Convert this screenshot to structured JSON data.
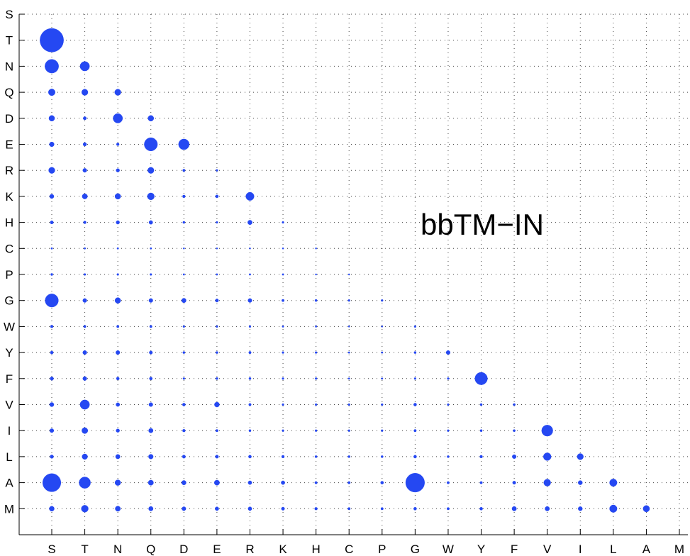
{
  "chart_data": {
    "type": "scatter",
    "title": "",
    "annotation": "bbTM−IN",
    "xlabel": "",
    "ylabel": "",
    "grid": true,
    "x_categories": [
      "S",
      "T",
      "N",
      "Q",
      "D",
      "E",
      "R",
      "K",
      "H",
      "C",
      "P",
      "G",
      "W",
      "Y",
      "F",
      "V",
      "I",
      "L",
      "A",
      "M"
    ],
    "y_categories": [
      "S",
      "T",
      "N",
      "Q",
      "D",
      "E",
      "R",
      "K",
      "H",
      "C",
      "P",
      "G",
      "W",
      "Y",
      "F",
      "V",
      "I",
      "L",
      "A",
      "M"
    ],
    "marker_color": "#2548f2",
    "size_unit": "relative bubble size (0-10)",
    "points": [
      {
        "x": "S",
        "y": "T",
        "size": 9.5
      },
      {
        "x": "S",
        "y": "N",
        "size": 5.5
      },
      {
        "x": "T",
        "y": "N",
        "size": 3.8
      },
      {
        "x": "S",
        "y": "Q",
        "size": 2.7
      },
      {
        "x": "T",
        "y": "Q",
        "size": 2.5
      },
      {
        "x": "N",
        "y": "Q",
        "size": 2.5
      },
      {
        "x": "S",
        "y": "D",
        "size": 2.3
      },
      {
        "x": "T",
        "y": "D",
        "size": 1.3
      },
      {
        "x": "N",
        "y": "D",
        "size": 3.8
      },
      {
        "x": "Q",
        "y": "D",
        "size": 2.3
      },
      {
        "x": "S",
        "y": "E",
        "size": 1.9
      },
      {
        "x": "T",
        "y": "E",
        "size": 1.4
      },
      {
        "x": "N",
        "y": "E",
        "size": 1.1
      },
      {
        "x": "Q",
        "y": "E",
        "size": 5.3
      },
      {
        "x": "D",
        "y": "E",
        "size": 4.3
      },
      {
        "x": "S",
        "y": "R",
        "size": 2.5
      },
      {
        "x": "T",
        "y": "R",
        "size": 1.6
      },
      {
        "x": "N",
        "y": "R",
        "size": 1.4
      },
      {
        "x": "Q",
        "y": "R",
        "size": 2.5
      },
      {
        "x": "D",
        "y": "R",
        "size": 1.0
      },
      {
        "x": "E",
        "y": "R",
        "size": 0.8
      },
      {
        "x": "S",
        "y": "K",
        "size": 1.7
      },
      {
        "x": "T",
        "y": "K",
        "size": 2.1
      },
      {
        "x": "N",
        "y": "K",
        "size": 2.3
      },
      {
        "x": "Q",
        "y": "K",
        "size": 2.8
      },
      {
        "x": "D",
        "y": "K",
        "size": 1.1
      },
      {
        "x": "E",
        "y": "K",
        "size": 1.2
      },
      {
        "x": "R",
        "y": "K",
        "size": 3.3
      },
      {
        "x": "S",
        "y": "H",
        "size": 1.3
      },
      {
        "x": "T",
        "y": "H",
        "size": 1.1
      },
      {
        "x": "N",
        "y": "H",
        "size": 1.4
      },
      {
        "x": "Q",
        "y": "H",
        "size": 1.5
      },
      {
        "x": "D",
        "y": "H",
        "size": 0.9
      },
      {
        "x": "E",
        "y": "H",
        "size": 0.8
      },
      {
        "x": "R",
        "y": "H",
        "size": 1.8
      },
      {
        "x": "K",
        "y": "H",
        "size": 0.8
      },
      {
        "x": "S",
        "y": "C",
        "size": 0.7
      },
      {
        "x": "T",
        "y": "C",
        "size": 0.7
      },
      {
        "x": "N",
        "y": "C",
        "size": 0.7
      },
      {
        "x": "Q",
        "y": "C",
        "size": 0.7
      },
      {
        "x": "D",
        "y": "C",
        "size": 0.6
      },
      {
        "x": "E",
        "y": "C",
        "size": 0.6
      },
      {
        "x": "R",
        "y": "C",
        "size": 0.6
      },
      {
        "x": "K",
        "y": "C",
        "size": 0.6
      },
      {
        "x": "H",
        "y": "C",
        "size": 0.6
      },
      {
        "x": "S",
        "y": "P",
        "size": 0.9
      },
      {
        "x": "T",
        "y": "P",
        "size": 0.8
      },
      {
        "x": "N",
        "y": "P",
        "size": 0.8
      },
      {
        "x": "Q",
        "y": "P",
        "size": 0.8
      },
      {
        "x": "D",
        "y": "P",
        "size": 0.7
      },
      {
        "x": "E",
        "y": "P",
        "size": 0.7
      },
      {
        "x": "R",
        "y": "P",
        "size": 0.7
      },
      {
        "x": "K",
        "y": "P",
        "size": 0.7
      },
      {
        "x": "H",
        "y": "P",
        "size": 0.6
      },
      {
        "x": "C",
        "y": "P",
        "size": 0.6
      },
      {
        "x": "S",
        "y": "G",
        "size": 5.3
      },
      {
        "x": "T",
        "y": "G",
        "size": 1.6
      },
      {
        "x": "N",
        "y": "G",
        "size": 2.3
      },
      {
        "x": "Q",
        "y": "G",
        "size": 1.6
      },
      {
        "x": "D",
        "y": "G",
        "size": 1.8
      },
      {
        "x": "E",
        "y": "G",
        "size": 1.3
      },
      {
        "x": "R",
        "y": "G",
        "size": 1.6
      },
      {
        "x": "K",
        "y": "G",
        "size": 1.0
      },
      {
        "x": "H",
        "y": "G",
        "size": 0.9
      },
      {
        "x": "C",
        "y": "G",
        "size": 0.8
      },
      {
        "x": "P",
        "y": "G",
        "size": 0.8
      },
      {
        "x": "S",
        "y": "W",
        "size": 1.1
      },
      {
        "x": "T",
        "y": "W",
        "size": 1.0
      },
      {
        "x": "N",
        "y": "W",
        "size": 1.0
      },
      {
        "x": "Q",
        "y": "W",
        "size": 1.0
      },
      {
        "x": "D",
        "y": "W",
        "size": 0.8
      },
      {
        "x": "E",
        "y": "W",
        "size": 0.8
      },
      {
        "x": "R",
        "y": "W",
        "size": 0.8
      },
      {
        "x": "K",
        "y": "W",
        "size": 0.7
      },
      {
        "x": "H",
        "y": "W",
        "size": 0.7
      },
      {
        "x": "C",
        "y": "W",
        "size": 0.6
      },
      {
        "x": "P",
        "y": "W",
        "size": 0.6
      },
      {
        "x": "G",
        "y": "W",
        "size": 0.8
      },
      {
        "x": "S",
        "y": "Y",
        "size": 1.2
      },
      {
        "x": "T",
        "y": "Y",
        "size": 1.6
      },
      {
        "x": "N",
        "y": "Y",
        "size": 1.6
      },
      {
        "x": "Q",
        "y": "Y",
        "size": 1.3
      },
      {
        "x": "D",
        "y": "Y",
        "size": 0.9
      },
      {
        "x": "E",
        "y": "Y",
        "size": 0.9
      },
      {
        "x": "R",
        "y": "Y",
        "size": 1.0
      },
      {
        "x": "K",
        "y": "Y",
        "size": 0.8
      },
      {
        "x": "H",
        "y": "Y",
        "size": 0.8
      },
      {
        "x": "C",
        "y": "Y",
        "size": 0.7
      },
      {
        "x": "P",
        "y": "Y",
        "size": 0.7
      },
      {
        "x": "G",
        "y": "Y",
        "size": 0.9
      },
      {
        "x": "W",
        "y": "Y",
        "size": 1.6
      },
      {
        "x": "S",
        "y": "F",
        "size": 1.4
      },
      {
        "x": "T",
        "y": "F",
        "size": 1.6
      },
      {
        "x": "N",
        "y": "F",
        "size": 1.2
      },
      {
        "x": "Q",
        "y": "F",
        "size": 1.2
      },
      {
        "x": "D",
        "y": "F",
        "size": 0.8
      },
      {
        "x": "E",
        "y": "F",
        "size": 0.9
      },
      {
        "x": "R",
        "y": "F",
        "size": 0.9
      },
      {
        "x": "K",
        "y": "F",
        "size": 0.8
      },
      {
        "x": "H",
        "y": "F",
        "size": 0.8
      },
      {
        "x": "C",
        "y": "F",
        "size": 0.7
      },
      {
        "x": "P",
        "y": "F",
        "size": 0.7
      },
      {
        "x": "G",
        "y": "F",
        "size": 0.8
      },
      {
        "x": "W",
        "y": "F",
        "size": 0.8
      },
      {
        "x": "Y",
        "y": "F",
        "size": 5.0
      },
      {
        "x": "S",
        "y": "V",
        "size": 1.7
      },
      {
        "x": "T",
        "y": "V",
        "size": 3.8
      },
      {
        "x": "N",
        "y": "V",
        "size": 1.5
      },
      {
        "x": "Q",
        "y": "V",
        "size": 1.6
      },
      {
        "x": "D",
        "y": "V",
        "size": 1.2
      },
      {
        "x": "E",
        "y": "V",
        "size": 2.0
      },
      {
        "x": "R",
        "y": "V",
        "size": 1.0
      },
      {
        "x": "K",
        "y": "V",
        "size": 0.8
      },
      {
        "x": "H",
        "y": "V",
        "size": 0.8
      },
      {
        "x": "C",
        "y": "V",
        "size": 0.8
      },
      {
        "x": "P",
        "y": "V",
        "size": 0.8
      },
      {
        "x": "G",
        "y": "V",
        "size": 1.2
      },
      {
        "x": "W",
        "y": "V",
        "size": 0.8
      },
      {
        "x": "Y",
        "y": "V",
        "size": 0.9
      },
      {
        "x": "F",
        "y": "V",
        "size": 0.9
      },
      {
        "x": "S",
        "y": "I",
        "size": 1.6
      },
      {
        "x": "T",
        "y": "I",
        "size": 2.4
      },
      {
        "x": "N",
        "y": "I",
        "size": 1.4
      },
      {
        "x": "Q",
        "y": "I",
        "size": 1.8
      },
      {
        "x": "D",
        "y": "I",
        "size": 1.1
      },
      {
        "x": "E",
        "y": "I",
        "size": 1.0
      },
      {
        "x": "R",
        "y": "I",
        "size": 0.9
      },
      {
        "x": "K",
        "y": "I",
        "size": 0.8
      },
      {
        "x": "H",
        "y": "I",
        "size": 0.8
      },
      {
        "x": "C",
        "y": "I",
        "size": 0.8
      },
      {
        "x": "P",
        "y": "I",
        "size": 0.8
      },
      {
        "x": "G",
        "y": "I",
        "size": 1.0
      },
      {
        "x": "W",
        "y": "I",
        "size": 0.8
      },
      {
        "x": "Y",
        "y": "I",
        "size": 0.9
      },
      {
        "x": "F",
        "y": "I",
        "size": 0.9
      },
      {
        "x": "V",
        "y": "I",
        "size": 4.5
      },
      {
        "x": "S",
        "y": "L",
        "size": 1.4
      },
      {
        "x": "T",
        "y": "L",
        "size": 2.2
      },
      {
        "x": "N",
        "y": "L",
        "size": 1.8
      },
      {
        "x": "Q",
        "y": "L",
        "size": 1.9
      },
      {
        "x": "D",
        "y": "L",
        "size": 1.3
      },
      {
        "x": "E",
        "y": "L",
        "size": 1.3
      },
      {
        "x": "R",
        "y": "L",
        "size": 1.2
      },
      {
        "x": "K",
        "y": "L",
        "size": 1.1
      },
      {
        "x": "H",
        "y": "L",
        "size": 0.9
      },
      {
        "x": "C",
        "y": "L",
        "size": 0.9
      },
      {
        "x": "P",
        "y": "L",
        "size": 0.9
      },
      {
        "x": "G",
        "y": "L",
        "size": 1.2
      },
      {
        "x": "W",
        "y": "L",
        "size": 0.9
      },
      {
        "x": "Y",
        "y": "L",
        "size": 1.1
      },
      {
        "x": "F",
        "y": "L",
        "size": 1.6
      },
      {
        "x": "V",
        "y": "L",
        "size": 3.1
      },
      {
        "x": "I",
        "y": "L",
        "size": 2.5
      },
      {
        "x": "S",
        "y": "A",
        "size": 7.3
      },
      {
        "x": "T",
        "y": "A",
        "size": 4.6
      },
      {
        "x": "N",
        "y": "A",
        "size": 2.3
      },
      {
        "x": "Q",
        "y": "A",
        "size": 2.1
      },
      {
        "x": "D",
        "y": "A",
        "size": 1.8
      },
      {
        "x": "E",
        "y": "A",
        "size": 2.1
      },
      {
        "x": "R",
        "y": "A",
        "size": 1.5
      },
      {
        "x": "K",
        "y": "A",
        "size": 1.5
      },
      {
        "x": "H",
        "y": "A",
        "size": 1.0
      },
      {
        "x": "C",
        "y": "A",
        "size": 1.0
      },
      {
        "x": "P",
        "y": "A",
        "size": 1.2
      },
      {
        "x": "G",
        "y": "A",
        "size": 7.6
      },
      {
        "x": "W",
        "y": "A",
        "size": 1.0
      },
      {
        "x": "Y",
        "y": "A",
        "size": 1.0
      },
      {
        "x": "F",
        "y": "A",
        "size": 1.3
      },
      {
        "x": "V",
        "y": "A",
        "size": 2.8
      },
      {
        "x": "I",
        "y": "A",
        "size": 1.7
      },
      {
        "x": "L",
        "y": "A",
        "size": 3.0
      },
      {
        "x": "S",
        "y": "M",
        "size": 2.0
      },
      {
        "x": "T",
        "y": "M",
        "size": 2.8
      },
      {
        "x": "N",
        "y": "M",
        "size": 2.1
      },
      {
        "x": "Q",
        "y": "M",
        "size": 1.8
      },
      {
        "x": "D",
        "y": "M",
        "size": 1.6
      },
      {
        "x": "E",
        "y": "M",
        "size": 1.5
      },
      {
        "x": "R",
        "y": "M",
        "size": 1.5
      },
      {
        "x": "K",
        "y": "M",
        "size": 1.3
      },
      {
        "x": "H",
        "y": "M",
        "size": 1.1
      },
      {
        "x": "C",
        "y": "M",
        "size": 1.0
      },
      {
        "x": "P",
        "y": "M",
        "size": 1.0
      },
      {
        "x": "G",
        "y": "M",
        "size": 1.2
      },
      {
        "x": "W",
        "y": "M",
        "size": 1.0
      },
      {
        "x": "Y",
        "y": "M",
        "size": 1.2
      },
      {
        "x": "F",
        "y": "M",
        "size": 1.8
      },
      {
        "x": "V",
        "y": "M",
        "size": 1.8
      },
      {
        "x": "I",
        "y": "M",
        "size": 1.7
      },
      {
        "x": "L",
        "y": "M",
        "size": 3.0
      },
      {
        "x": "A",
        "y": "M",
        "size": 2.6
      }
    ]
  }
}
